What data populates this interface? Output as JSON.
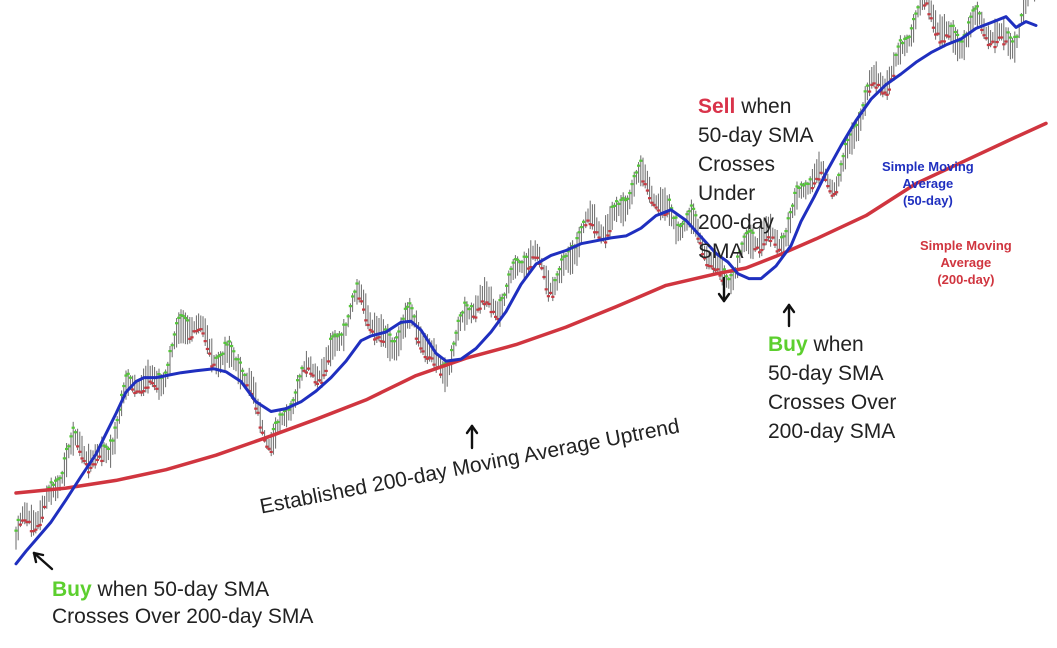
{
  "chart_data": {
    "type": "line",
    "title": "",
    "xlabel": "",
    "ylabel": "",
    "grid": false,
    "price_colors": {
      "up": "#55c63a",
      "down": "#c63a42",
      "body": "#6a6a6a"
    },
    "series": [
      {
        "name": "Simple Moving Average (50-day)",
        "color": "#1f2fbf",
        "x": [
          0,
          10,
          20,
          35,
          50,
          65,
          80,
          88,
          100,
          110,
          120,
          128,
          140,
          150,
          165,
          180,
          198,
          210,
          225,
          240,
          255,
          270,
          285,
          300,
          315,
          330,
          345,
          355,
          370,
          385,
          395,
          405,
          420,
          430,
          445,
          460,
          475,
          490,
          505,
          520,
          535,
          550,
          565,
          580,
          595,
          610,
          625,
          640,
          655,
          670,
          685,
          700,
          712,
          722,
          733,
          745,
          760,
          775,
          785,
          798,
          810,
          825,
          840,
          855,
          870,
          885,
          900,
          915,
          930,
          945,
          960,
          975,
          990,
          1000,
          1010,
          1020
        ],
        "values": [
          27,
          40,
          52,
          70,
          93,
          117,
          140,
          157,
          182,
          204,
          215,
          219,
          219,
          221,
          224,
          226,
          228,
          225,
          215,
          194,
          184,
          187,
          194,
          205,
          219,
          236,
          257,
          262,
          266,
          276,
          277,
          268,
          244,
          236,
          238,
          249,
          266,
          287,
          315,
          336,
          345,
          350,
          357,
          360,
          363,
          365,
          373,
          386,
          392,
          381,
          364,
          347,
          338,
          326,
          321,
          321,
          334,
          355,
          380,
          405,
          430,
          458,
          484,
          506,
          521,
          532,
          544,
          554,
          562,
          568,
          579,
          585,
          591,
          580,
          586,
          582
        ]
      },
      {
        "name": "Simple Moving Average (200-day)",
        "color": "#d0353f",
        "x": [
          0,
          50,
          100,
          150,
          200,
          250,
          300,
          350,
          400,
          450,
          500,
          550,
          600,
          650,
          700,
          730,
          760,
          800,
          850,
          900,
          950,
          1000,
          1030
        ],
        "values": [
          100,
          105,
          113,
          124,
          139,
          157,
          176,
          196,
          221,
          239,
          253,
          271,
          292,
          314,
          326,
          332,
          344,
          362,
          386,
          419,
          443,
          467,
          481
        ]
      }
    ]
  },
  "annotations": {
    "buy_1": {
      "keyword": "Buy",
      "line1": " when 50-day SMA",
      "line2": "Crosses Over 200-day SMA"
    },
    "sell": {
      "keyword": "Sell",
      "line1": " when",
      "rest": [
        "50-day SMA",
        "Crosses",
        "Under",
        "200-day",
        "SMA"
      ]
    },
    "buy_2": {
      "keyword": "Buy",
      "line1": " when",
      "rest": [
        "50-day SMA",
        "Crosses Over",
        "200-day SMA"
      ]
    },
    "uptrend": "Established 200-day Moving Average Uptrend"
  },
  "legend": {
    "sma50": {
      "line1": "Simple Moving",
      "line2": "Average",
      "line3": "(50-day)",
      "color": "#1f2fbf"
    },
    "sma200": {
      "line1": "Simple Moving",
      "line2": "Average",
      "line3": "(200-day)",
      "color": "#d0353f"
    }
  }
}
